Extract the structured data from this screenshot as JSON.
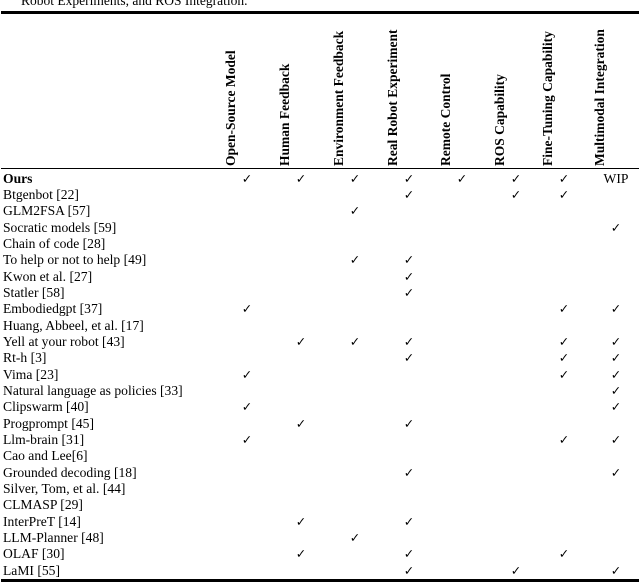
{
  "caption": "Robot Experiments, and ROS Integration.",
  "table": {
    "columns": [
      "Open-Source Model",
      "Human Feedback",
      "Environment Feedback",
      "Real Robot Experiment",
      "Remote Control",
      "ROS Capability",
      "Fine-Tuning Capability",
      "Multimodal Integration"
    ],
    "check_glyph": "✓",
    "rows": [
      {
        "label": "Ours",
        "bold": true,
        "cells": [
          "✓",
          "✓",
          "✓",
          "✓",
          "✓",
          "✓",
          "✓",
          "WIP"
        ]
      },
      {
        "label": "Btgenbot [22]",
        "cells": [
          "",
          "",
          "",
          "✓",
          "",
          "✓",
          "✓",
          ""
        ]
      },
      {
        "label": "GLM2FSA [57]",
        "cells": [
          "",
          "",
          "✓",
          "",
          "",
          "",
          "",
          ""
        ]
      },
      {
        "label": "Socratic models [59]",
        "cells": [
          "",
          "",
          "",
          "",
          "",
          "",
          "",
          "✓"
        ]
      },
      {
        "label": "Chain of code [28]",
        "cells": [
          "",
          "",
          "",
          "",
          "",
          "",
          "",
          ""
        ]
      },
      {
        "label": "To help or not to help [49]",
        "cells": [
          "",
          "",
          "✓",
          "✓",
          "",
          "",
          "",
          ""
        ]
      },
      {
        "label": "Kwon et al. [27]",
        "cells": [
          "",
          "",
          "",
          "✓",
          "",
          "",
          "",
          ""
        ]
      },
      {
        "label": "Statler [58]",
        "cells": [
          "",
          "",
          "",
          "✓",
          "",
          "",
          "",
          ""
        ]
      },
      {
        "label": "Embodiedgpt [37]",
        "cells": [
          "✓",
          "",
          "",
          "",
          "",
          "",
          "✓",
          "✓"
        ]
      },
      {
        "label": "Huang, Abbeel, et al. [17]",
        "cells": [
          "",
          "",
          "",
          "",
          "",
          "",
          "",
          ""
        ]
      },
      {
        "label": "Yell at your robot [43]",
        "cells": [
          "",
          "✓",
          "✓",
          "✓",
          "",
          "",
          "✓",
          "✓"
        ]
      },
      {
        "label": "Rt-h [3]",
        "cells": [
          "",
          "",
          "",
          "✓",
          "",
          "",
          "✓",
          "✓"
        ]
      },
      {
        "label": "Vima [23]",
        "cells": [
          "✓",
          "",
          "",
          "",
          "",
          "",
          "✓",
          "✓"
        ]
      },
      {
        "label": "Natural language as policies [33]",
        "cells": [
          "",
          "",
          "",
          "",
          "",
          "",
          "",
          "✓"
        ]
      },
      {
        "label": "Clipswarm [40]",
        "cells": [
          "✓",
          "",
          "",
          "",
          "",
          "",
          "",
          "✓"
        ]
      },
      {
        "label": "Progprompt [45]",
        "cells": [
          "",
          "✓",
          "",
          "✓",
          "",
          "",
          "",
          ""
        ]
      },
      {
        "label": "Llm-brain [31]",
        "cells": [
          "✓",
          "",
          "",
          "",
          "",
          "",
          "✓",
          "✓"
        ]
      },
      {
        "label": "Cao and Lee[6]",
        "cells": [
          "",
          "",
          "",
          "",
          "",
          "",
          "",
          ""
        ]
      },
      {
        "label": "Grounded decoding [18]",
        "cells": [
          "",
          "",
          "",
          "✓",
          "",
          "",
          "",
          "✓"
        ]
      },
      {
        "label": "Silver, Tom, et al. [44]",
        "cells": [
          "",
          "",
          "",
          "",
          "",
          "",
          "",
          ""
        ]
      },
      {
        "label": "CLMASP [29]",
        "cells": [
          "",
          "",
          "",
          "",
          "",
          "",
          "",
          ""
        ]
      },
      {
        "label": "InterPreT [14]",
        "cells": [
          "",
          "✓",
          "",
          "✓",
          "",
          "",
          "",
          ""
        ]
      },
      {
        "label": "LLM-Planner [48]",
        "cells": [
          "",
          "",
          "✓",
          "",
          "",
          "",
          "",
          ""
        ]
      },
      {
        "label": "OLAF [30]",
        "cells": [
          "",
          "✓",
          "",
          "✓",
          "",
          "",
          "✓",
          ""
        ]
      },
      {
        "label": "LaMI [55]",
        "cells": [
          "",
          "",
          "",
          "✓",
          "",
          "✓",
          "",
          "✓"
        ]
      }
    ]
  }
}
